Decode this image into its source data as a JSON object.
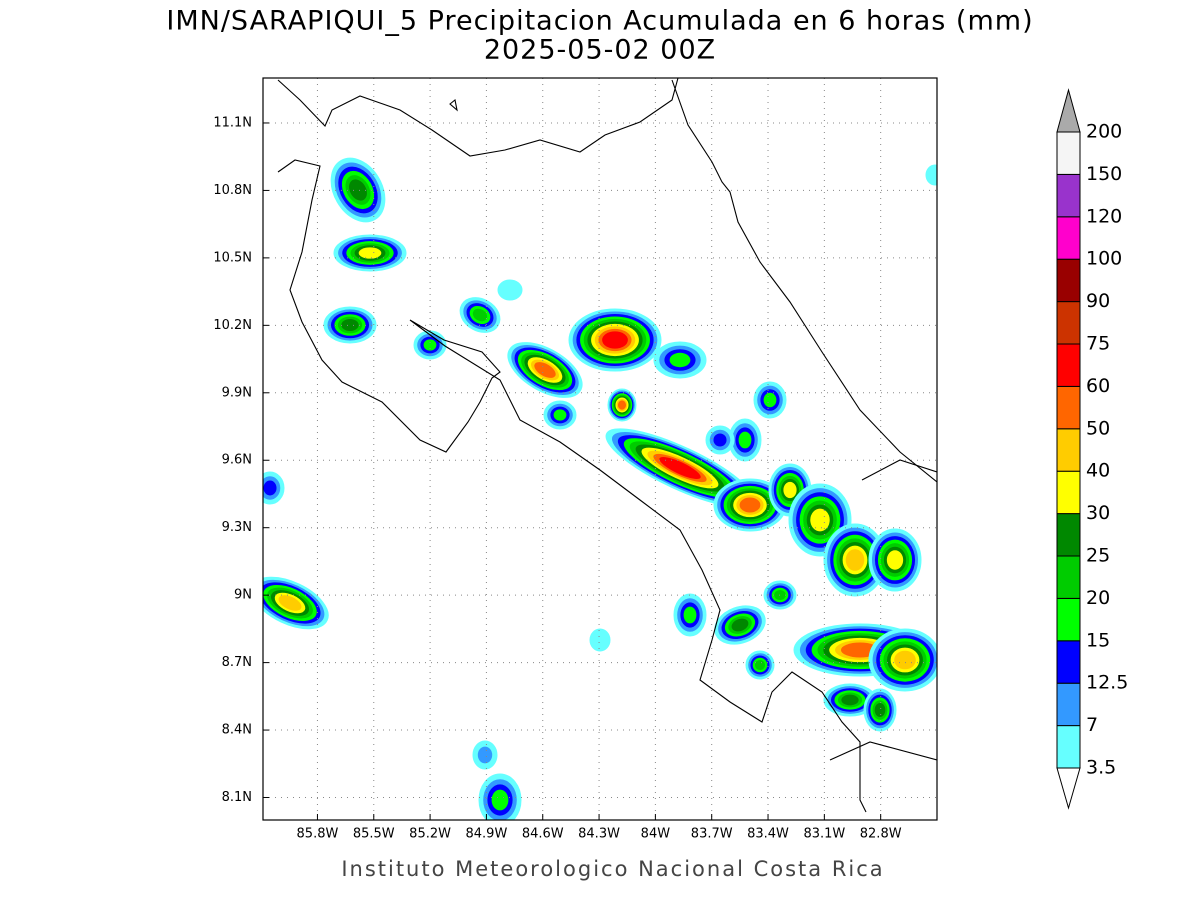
{
  "title": "IMN/SARAPIQUI_5 Precipitacion Acumulada en 6 horas (mm)",
  "subtitle": "2025-05-02 00Z",
  "footer": "Instituto Meteorologico Nacional Costa Rica",
  "map": {
    "lonlim": [
      -86.09,
      -82.5
    ],
    "latlim": [
      8.0,
      11.3
    ],
    "lonticks": [
      {
        "value": -85.8,
        "label": "85.8W"
      },
      {
        "value": -85.5,
        "label": "85.5W"
      },
      {
        "value": -85.2,
        "label": "85.2W"
      },
      {
        "value": -84.9,
        "label": "84.9W"
      },
      {
        "value": -84.6,
        "label": "84.6W"
      },
      {
        "value": -84.3,
        "label": "84.3W"
      },
      {
        "value": -84.0,
        "label": "84W"
      },
      {
        "value": -83.7,
        "label": "83.7W"
      },
      {
        "value": -83.4,
        "label": "83.4W"
      },
      {
        "value": -83.1,
        "label": "83.1W"
      },
      {
        "value": -82.8,
        "label": "82.8W"
      }
    ],
    "latticks": [
      {
        "value": 8.1,
        "label": "8.1N"
      },
      {
        "value": 8.4,
        "label": "8.4N"
      },
      {
        "value": 8.7,
        "label": "8.7N"
      },
      {
        "value": 9.0,
        "label": "9N"
      },
      {
        "value": 9.3,
        "label": "9.3N"
      },
      {
        "value": 9.6,
        "label": "9.6N"
      },
      {
        "value": 9.9,
        "label": "9.9N"
      },
      {
        "value": 10.2,
        "label": "10.2N"
      },
      {
        "value": 10.5,
        "label": "10.5N"
      },
      {
        "value": 10.8,
        "label": "10.8N"
      },
      {
        "value": 11.1,
        "label": "11.1N"
      }
    ],
    "grid": true
  },
  "colorbar": {
    "levels": [
      3.5,
      7,
      12.5,
      15,
      20,
      25,
      30,
      40,
      50,
      60,
      75,
      90,
      100,
      120,
      150,
      200
    ],
    "colors": [
      "#ffffff",
      "#66ffff",
      "#3399ff",
      "#0000ff",
      "#00ff00",
      "#00cc00",
      "#008800",
      "#ffff00",
      "#ffcc00",
      "#ff6600",
      "#ff0000",
      "#cc3300",
      "#990000",
      "#ff00cc",
      "#9933cc",
      "#f5f5f5",
      "#aaaaaa"
    ]
  }
}
